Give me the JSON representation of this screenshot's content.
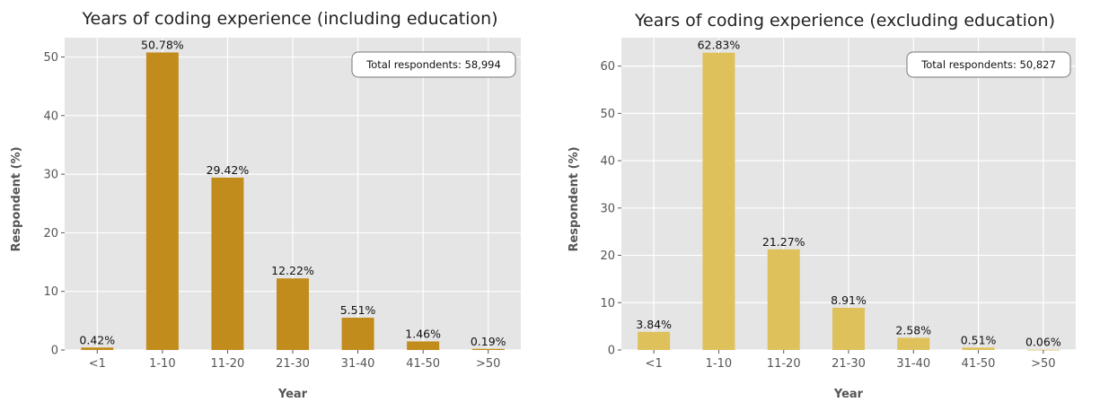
{
  "colors": {
    "plot_background": "#e5e5e5",
    "grid": "#ffffff",
    "bar_left": "#c28c1c",
    "bar_right": "#dfc15c"
  },
  "chart_data": [
    {
      "type": "bar",
      "title": "Years of coding experience (including education)",
      "xlabel": "Year",
      "ylabel": "Respondent (%)",
      "categories": [
        "<1",
        "1-10",
        "11-20",
        "21-30",
        "31-40",
        "41-50",
        ">50"
      ],
      "values": [
        0.42,
        50.78,
        29.42,
        12.22,
        5.51,
        1.46,
        0.19
      ],
      "value_labels": [
        "0.42%",
        "50.78%",
        "29.42%",
        "12.22%",
        "5.51%",
        "1.46%",
        "0.19%"
      ],
      "ylim": [
        0,
        53.3
      ],
      "yticks": [
        0,
        10,
        20,
        30,
        40,
        50
      ],
      "annotation": "Total respondents: 58,994",
      "annotation_position": "top-right",
      "grid": true,
      "color": "#c28c1c"
    },
    {
      "type": "bar",
      "title": "Years of coding experience (excluding education)",
      "xlabel": "Year",
      "ylabel": "Respondent (%)",
      "categories": [
        "<1",
        "1-10",
        "11-20",
        "21-30",
        "31-40",
        "41-50",
        ">50"
      ],
      "values": [
        3.84,
        62.83,
        21.27,
        8.91,
        2.58,
        0.51,
        0.06
      ],
      "value_labels": [
        "3.84%",
        "62.83%",
        "21.27%",
        "8.91%",
        "2.58%",
        "0.51%",
        "0.06%"
      ],
      "ylim": [
        0,
        66
      ],
      "yticks": [
        0,
        10,
        20,
        30,
        40,
        50,
        60
      ],
      "annotation": "Total respondents: 50,827",
      "annotation_position": "top-right",
      "grid": true,
      "color": "#dfc15c"
    }
  ]
}
